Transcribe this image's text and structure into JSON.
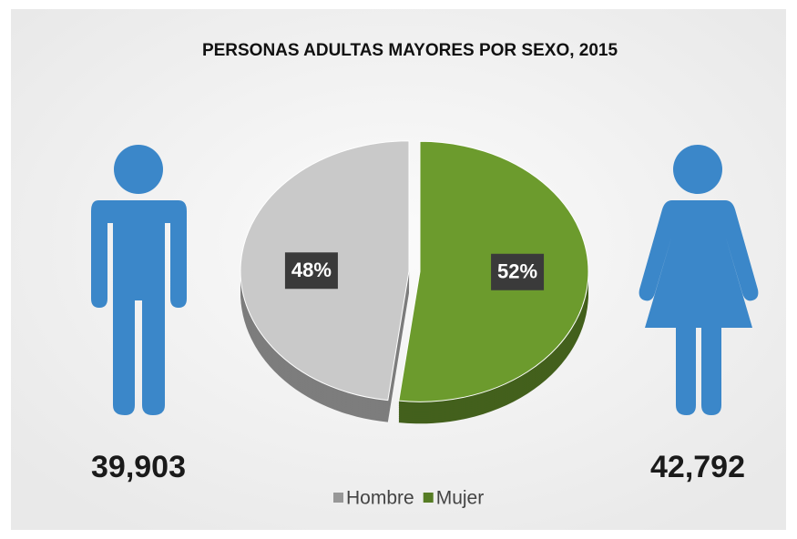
{
  "chart_data": {
    "type": "pie",
    "title": "PERSONAS ADULTAS MAYORES POR SEXO, 2015",
    "categories": [
      "Hombre",
      "Mujer"
    ],
    "values": [
      48,
      52
    ],
    "value_labels": [
      "48%",
      "52%"
    ],
    "colors": [
      "#c9c9c9",
      "#6c9b2d"
    ],
    "annotations": [
      "39,903",
      "42,792"
    ],
    "legend": "bottom"
  }
}
